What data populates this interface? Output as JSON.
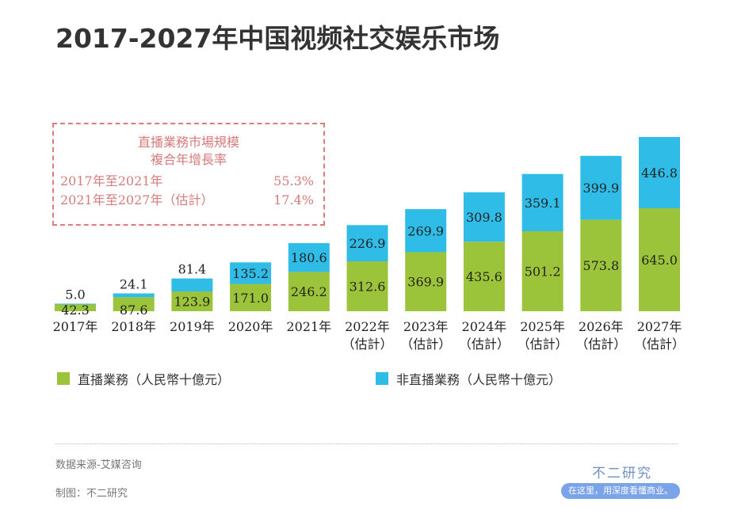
{
  "title": "2017-2027年中国视频社交娱乐市场",
  "cagr": {
    "heading1": "直播業務市場規模",
    "heading2": "複合年增長率",
    "rows": [
      {
        "label": "2017年至2021年",
        "value": "55.3%"
      },
      {
        "label": "2021年至2027年（估計）",
        "value": "17.4%"
      }
    ]
  },
  "chart_data": {
    "type": "bar",
    "stacked": true,
    "categories": [
      "2017年",
      "2018年",
      "2019年",
      "2020年",
      "2021年",
      "2022年",
      "2023年",
      "2024年",
      "2025年",
      "2026年",
      "2027年"
    ],
    "sublabels": [
      "",
      "",
      "",
      "",
      "",
      "（估計）",
      "（估計）",
      "（估計）",
      "（估計）",
      "（估計）",
      "（估計）"
    ],
    "series": [
      {
        "name": "直播業務（人民幣十億元）",
        "color": "#9cc43a",
        "values": [
          42.3,
          87.6,
          123.9,
          171.0,
          246.2,
          312.6,
          369.9,
          435.6,
          501.2,
          573.8,
          645.0
        ]
      },
      {
        "name": "非直播業務（人民幣十億元）",
        "color": "#2fbde8",
        "values": [
          5.0,
          24.1,
          81.4,
          135.2,
          180.6,
          226.9,
          269.9,
          309.8,
          359.1,
          399.9,
          446.8
        ]
      }
    ],
    "ylim": [
      0,
      1100
    ],
    "grid": false,
    "legend": "bottom"
  },
  "footer": {
    "source": "数据来源-艾媒咨询",
    "maker": "制图：不二研究"
  },
  "brand": {
    "name": "不二研究",
    "slogan": "在这里，用深度看懂商业。"
  }
}
